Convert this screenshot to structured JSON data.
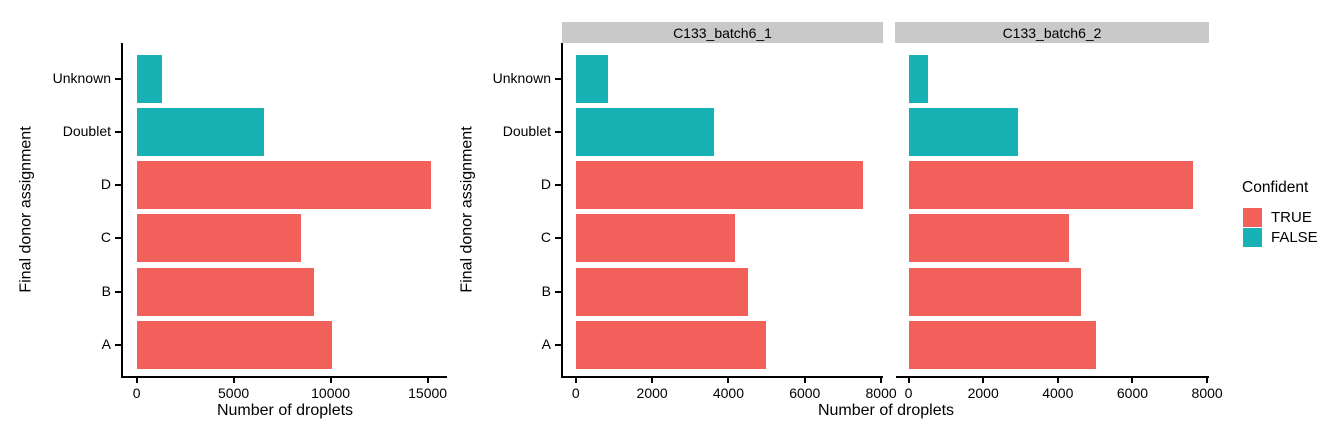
{
  "colors": {
    "confident_true": "#F2605C",
    "confident_false": "#18B2B4",
    "strip_background": "#C9C9C9",
    "axis": "#000000"
  },
  "legend": {
    "title": "Confident",
    "items": [
      {
        "label": "TRUE",
        "key": "confident_true"
      },
      {
        "label": "FALSE",
        "key": "confident_false"
      }
    ]
  },
  "chart_data": [
    {
      "type": "bar",
      "orientation": "horizontal",
      "facet": "",
      "xlabel": "Number of droplets",
      "ylabel": "Final donor assignment",
      "categories": [
        "Unknown",
        "Doublet",
        "D",
        "C",
        "B",
        "A"
      ],
      "values": [
        1330,
        6560,
        15200,
        8470,
        9140,
        10050
      ],
      "confident": [
        false,
        false,
        true,
        true,
        true,
        true
      ],
      "xticks": [
        0,
        5000,
        10000,
        15000
      ],
      "xlim": [
        0,
        16000
      ],
      "grid": false,
      "legend_position": "none"
    },
    {
      "type": "bar",
      "orientation": "horizontal",
      "facet": "C133_batch6_1",
      "xlabel": "Number of droplets",
      "ylabel": "Final donor assignment",
      "categories": [
        "Unknown",
        "Doublet",
        "D",
        "C",
        "B",
        "A"
      ],
      "values": [
        840,
        3610,
        7530,
        4180,
        4500,
        4990
      ],
      "confident": [
        false,
        false,
        true,
        true,
        true,
        true
      ],
      "xticks": [
        0,
        2000,
        4000,
        6000,
        8000
      ],
      "xlim": [
        0,
        8050
      ],
      "grid": false,
      "legend_position": "right"
    },
    {
      "type": "bar",
      "orientation": "horizontal",
      "facet": "C133_batch6_2",
      "xlabel": "Number of droplets",
      "ylabel": "Final donor assignment",
      "categories": [
        "Unknown",
        "Doublet",
        "D",
        "C",
        "B",
        "A"
      ],
      "values": [
        520,
        2930,
        7610,
        4310,
        4630,
        5020
      ],
      "confident": [
        false,
        false,
        true,
        true,
        true,
        true
      ],
      "xticks": [
        0,
        2000,
        4000,
        6000,
        8000
      ],
      "xlim": [
        0,
        8050
      ],
      "grid": false,
      "legend_position": "right"
    }
  ]
}
